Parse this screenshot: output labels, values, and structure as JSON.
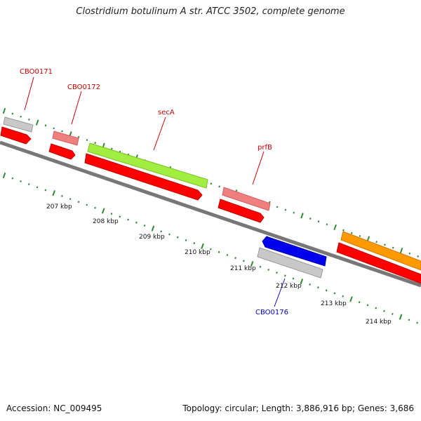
{
  "header": {
    "title": "Clostridium botulinum A str. ATCC 3502, complete genome"
  },
  "footer": {
    "accession": "Accession: NC_009495",
    "summary": "Topology: circular; Length: 3,886,916 bp; Genes: 3,686"
  },
  "colors": {
    "backbone": "#777777",
    "tick": "#2e8b2e",
    "label_red": "#cc0000",
    "label_blue": "#0000cc",
    "cds": "#ff0000",
    "gray": "#c8c8c8",
    "pink": "#f08080",
    "lime": "#a0ee40",
    "orange": "#ff9900",
    "blue": "#0000ee"
  },
  "scale_labels": [
    "207 kbp",
    "208 kbp",
    "209 kbp",
    "210 kbp",
    "211 kbp",
    "212 kbp",
    "213 kbp",
    "214 kbp"
  ],
  "gene_labels": {
    "cbo0171": "CBO0171",
    "cbo0172": "CBO0172",
    "secA": "secA",
    "prfB": "prfB",
    "cbo0176": "CBO0176"
  }
}
